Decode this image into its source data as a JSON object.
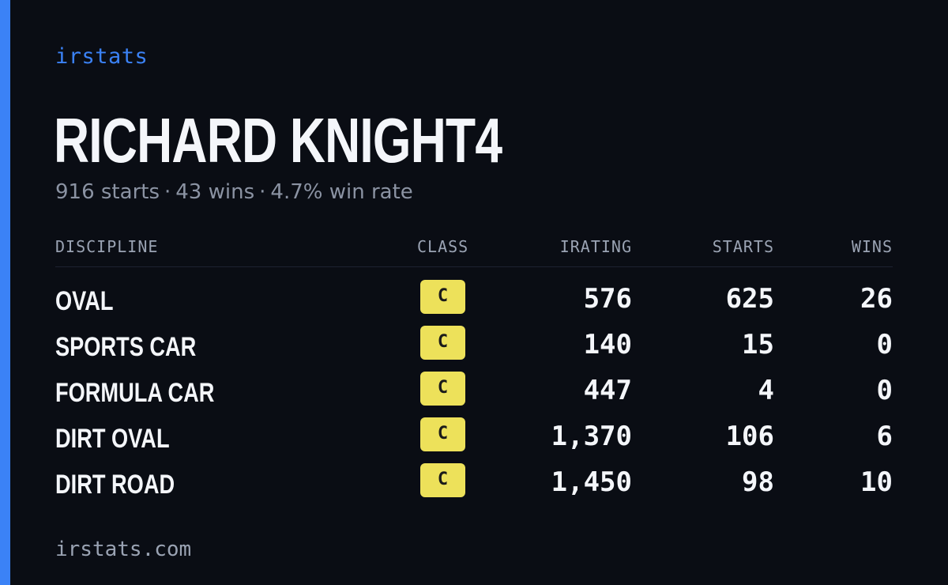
{
  "brand": "irstats",
  "driver": {
    "name": "RICHARD KNIGHT4",
    "starts_text": "916 starts",
    "wins_text": "43 wins",
    "winrate_text": "4.7% win rate",
    "separator": "·"
  },
  "table": {
    "headers": {
      "discipline": "DISCIPLINE",
      "class": "CLASS",
      "irating": "IRATING",
      "starts": "STARTS",
      "wins": "WINS"
    },
    "rows": [
      {
        "discipline": "OVAL",
        "class": "C",
        "irating": "576",
        "starts": "625",
        "wins": "26"
      },
      {
        "discipline": "SPORTS CAR",
        "class": "C",
        "irating": "140",
        "starts": "15",
        "wins": "0"
      },
      {
        "discipline": "FORMULA CAR",
        "class": "C",
        "irating": "447",
        "starts": "4",
        "wins": "0"
      },
      {
        "discipline": "DIRT OVAL",
        "class": "C",
        "irating": "1,370",
        "starts": "106",
        "wins": "6"
      },
      {
        "discipline": "DIRT ROAD",
        "class": "C",
        "irating": "1,450",
        "starts": "98",
        "wins": "10"
      }
    ]
  },
  "footer": "irstats.com",
  "colors": {
    "background": "#0a0d14",
    "accent": "#3b82f6",
    "class_c_badge": "#ede15a"
  }
}
